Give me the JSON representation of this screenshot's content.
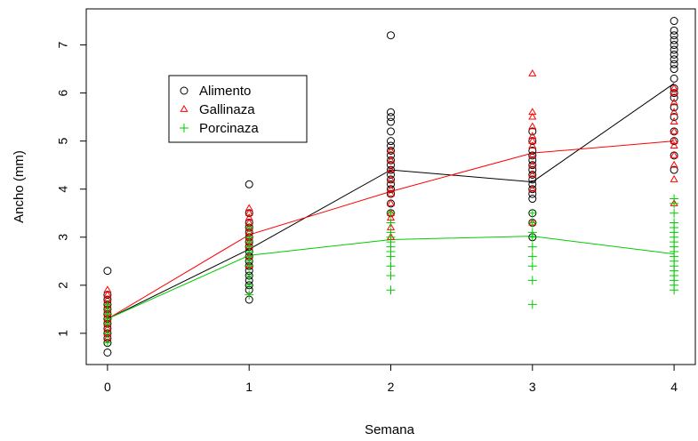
{
  "chart_data": {
    "type": "scatter",
    "title": "",
    "xlabel": "Semana",
    "ylabel": "Ancho (mm)",
    "xlim": [
      -0.15,
      4.15
    ],
    "ylim": [
      0.35,
      7.75
    ],
    "x_ticks": [
      0,
      1,
      2,
      3,
      4
    ],
    "y_ticks": [
      1,
      2,
      3,
      4,
      5,
      6,
      7
    ],
    "grid": false,
    "legend_position": "top-left",
    "series": [
      {
        "name": "Alimento",
        "color": "#000000",
        "marker": "circle",
        "mean_line": [
          [
            0,
            1.3
          ],
          [
            1,
            2.75
          ],
          [
            2,
            4.4
          ],
          [
            3,
            4.15
          ],
          [
            4,
            6.2
          ]
        ],
        "points": [
          [
            0,
            0.6
          ],
          [
            0,
            0.8
          ],
          [
            0,
            0.9
          ],
          [
            0,
            1.0
          ],
          [
            0,
            1.1
          ],
          [
            0,
            1.2
          ],
          [
            0,
            1.3
          ],
          [
            0,
            1.4
          ],
          [
            0,
            1.5
          ],
          [
            0,
            1.6
          ],
          [
            0,
            1.7
          ],
          [
            0,
            1.8
          ],
          [
            0,
            2.3
          ],
          [
            1,
            1.7
          ],
          [
            1,
            1.9
          ],
          [
            1,
            2.0
          ],
          [
            1,
            2.1
          ],
          [
            1,
            2.2
          ],
          [
            1,
            2.3
          ],
          [
            1,
            2.4
          ],
          [
            1,
            2.5
          ],
          [
            1,
            2.6
          ],
          [
            1,
            2.7
          ],
          [
            1,
            2.8
          ],
          [
            1,
            2.9
          ],
          [
            1,
            3.0
          ],
          [
            1,
            3.1
          ],
          [
            1,
            3.2
          ],
          [
            1,
            3.3
          ],
          [
            1,
            3.5
          ],
          [
            1,
            4.1
          ],
          [
            2,
            3.5
          ],
          [
            2,
            3.7
          ],
          [
            2,
            3.9
          ],
          [
            2,
            4.0
          ],
          [
            2,
            4.1
          ],
          [
            2,
            4.2
          ],
          [
            2,
            4.3
          ],
          [
            2,
            4.4
          ],
          [
            2,
            4.5
          ],
          [
            2,
            4.6
          ],
          [
            2,
            4.7
          ],
          [
            2,
            4.8
          ],
          [
            2,
            4.9
          ],
          [
            2,
            5.0
          ],
          [
            2,
            5.2
          ],
          [
            2,
            5.4
          ],
          [
            2,
            5.5
          ],
          [
            2,
            5.6
          ],
          [
            2,
            7.2
          ],
          [
            3,
            3.0
          ],
          [
            3,
            3.3
          ],
          [
            3,
            3.5
          ],
          [
            3,
            3.8
          ],
          [
            3,
            3.9
          ],
          [
            3,
            4.0
          ],
          [
            3,
            4.1
          ],
          [
            3,
            4.2
          ],
          [
            3,
            4.3
          ],
          [
            3,
            4.4
          ],
          [
            3,
            4.5
          ],
          [
            3,
            4.6
          ],
          [
            3,
            4.7
          ],
          [
            3,
            4.8
          ],
          [
            3,
            5.0
          ],
          [
            3,
            5.2
          ],
          [
            4,
            4.4
          ],
          [
            4,
            4.7
          ],
          [
            4,
            5.0
          ],
          [
            4,
            5.2
          ],
          [
            4,
            5.5
          ],
          [
            4,
            5.7
          ],
          [
            4,
            5.9
          ],
          [
            4,
            6.0
          ],
          [
            4,
            6.1
          ],
          [
            4,
            6.3
          ],
          [
            4,
            6.5
          ],
          [
            4,
            6.6
          ],
          [
            4,
            6.7
          ],
          [
            4,
            6.8
          ],
          [
            4,
            6.9
          ],
          [
            4,
            7.0
          ],
          [
            4,
            7.1
          ],
          [
            4,
            7.2
          ],
          [
            4,
            7.3
          ],
          [
            4,
            7.5
          ]
        ]
      },
      {
        "name": "Gallinaza",
        "color": "#ff0000",
        "marker": "triangle",
        "mean_line": [
          [
            0,
            1.3
          ],
          [
            1,
            3.05
          ],
          [
            2,
            3.95
          ],
          [
            3,
            4.75
          ],
          [
            4,
            5.0
          ]
        ],
        "points": [
          [
            0,
            0.9
          ],
          [
            0,
            1.0
          ],
          [
            0,
            1.1
          ],
          [
            0,
            1.2
          ],
          [
            0,
            1.3
          ],
          [
            0,
            1.4
          ],
          [
            0,
            1.5
          ],
          [
            0,
            1.6
          ],
          [
            0,
            1.7
          ],
          [
            0,
            1.8
          ],
          [
            0,
            1.9
          ],
          [
            1,
            2.4
          ],
          [
            1,
            2.6
          ],
          [
            1,
            2.8
          ],
          [
            1,
            2.9
          ],
          [
            1,
            3.0
          ],
          [
            1,
            3.1
          ],
          [
            1,
            3.2
          ],
          [
            1,
            3.3
          ],
          [
            1,
            3.4
          ],
          [
            1,
            3.5
          ],
          [
            1,
            3.6
          ],
          [
            2,
            3.0
          ],
          [
            2,
            3.2
          ],
          [
            2,
            3.4
          ],
          [
            2,
            3.5
          ],
          [
            2,
            3.7
          ],
          [
            2,
            3.9
          ],
          [
            2,
            4.0
          ],
          [
            2,
            4.2
          ],
          [
            2,
            4.4
          ],
          [
            2,
            4.6
          ],
          [
            2,
            4.8
          ],
          [
            3,
            3.3
          ],
          [
            3,
            4.0
          ],
          [
            3,
            4.3
          ],
          [
            3,
            4.5
          ],
          [
            3,
            4.7
          ],
          [
            3,
            4.9
          ],
          [
            3,
            5.0
          ],
          [
            3,
            5.1
          ],
          [
            3,
            5.3
          ],
          [
            3,
            5.5
          ],
          [
            3,
            5.6
          ],
          [
            3,
            6.4
          ],
          [
            4,
            3.7
          ],
          [
            4,
            4.2
          ],
          [
            4,
            4.5
          ],
          [
            4,
            4.7
          ],
          [
            4,
            4.9
          ],
          [
            4,
            5.0
          ],
          [
            4,
            5.2
          ],
          [
            4,
            5.4
          ],
          [
            4,
            5.6
          ],
          [
            4,
            5.8
          ],
          [
            4,
            6.0
          ],
          [
            4,
            6.1
          ]
        ]
      },
      {
        "name": "Porcinaza",
        "color": "#00cc00",
        "marker": "plus",
        "mean_line": [
          [
            0,
            1.3
          ],
          [
            1,
            2.62
          ],
          [
            2,
            2.95
          ],
          [
            3,
            3.02
          ],
          [
            4,
            2.65
          ]
        ],
        "points": [
          [
            0,
            0.8
          ],
          [
            0,
            1.0
          ],
          [
            0,
            1.2
          ],
          [
            0,
            1.3
          ],
          [
            0,
            1.4
          ],
          [
            0,
            1.5
          ],
          [
            0,
            1.6
          ],
          [
            1,
            1.8
          ],
          [
            1,
            2.0
          ],
          [
            1,
            2.2
          ],
          [
            1,
            2.4
          ],
          [
            1,
            2.5
          ],
          [
            1,
            2.6
          ],
          [
            1,
            2.7
          ],
          [
            1,
            2.8
          ],
          [
            1,
            2.9
          ],
          [
            1,
            3.0
          ],
          [
            1,
            3.2
          ],
          [
            2,
            1.9
          ],
          [
            2,
            2.2
          ],
          [
            2,
            2.4
          ],
          [
            2,
            2.6
          ],
          [
            2,
            2.7
          ],
          [
            2,
            2.8
          ],
          [
            2,
            2.9
          ],
          [
            2,
            3.0
          ],
          [
            2,
            3.1
          ],
          [
            2,
            3.3
          ],
          [
            2,
            3.5
          ],
          [
            3,
            1.6
          ],
          [
            3,
            2.1
          ],
          [
            3,
            2.4
          ],
          [
            3,
            2.6
          ],
          [
            3,
            2.8
          ],
          [
            3,
            3.0
          ],
          [
            3,
            3.1
          ],
          [
            3,
            3.3
          ],
          [
            3,
            3.5
          ],
          [
            4,
            1.9
          ],
          [
            4,
            2.0
          ],
          [
            4,
            2.1
          ],
          [
            4,
            2.2
          ],
          [
            4,
            2.3
          ],
          [
            4,
            2.4
          ],
          [
            4,
            2.5
          ],
          [
            4,
            2.6
          ],
          [
            4,
            2.7
          ],
          [
            4,
            2.8
          ],
          [
            4,
            2.9
          ],
          [
            4,
            3.0
          ],
          [
            4,
            3.1
          ],
          [
            4,
            3.2
          ],
          [
            4,
            3.3
          ],
          [
            4,
            3.5
          ],
          [
            4,
            3.7
          ],
          [
            4,
            3.8
          ]
        ]
      }
    ]
  }
}
